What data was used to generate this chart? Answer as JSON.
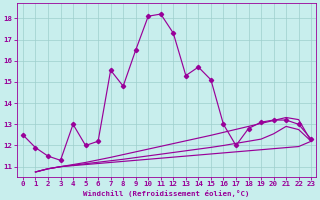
{
  "xlabel": "Windchill (Refroidissement éolien,°C)",
  "background_color": "#c8eeed",
  "grid_color": "#9ecfcc",
  "line_color": "#990099",
  "xlim_min": -0.5,
  "xlim_max": 23.4,
  "ylim_min": 10.5,
  "ylim_max": 18.7,
  "yticks": [
    11,
    12,
    13,
    14,
    15,
    16,
    17,
    18
  ],
  "xticks": [
    0,
    1,
    2,
    3,
    4,
    5,
    6,
    7,
    8,
    9,
    10,
    11,
    12,
    13,
    14,
    15,
    16,
    17,
    18,
    19,
    20,
    21,
    22,
    23
  ],
  "main_x": [
    0,
    1,
    2,
    3,
    4,
    5,
    6,
    7,
    8,
    9,
    10,
    11,
    12,
    13,
    14,
    15,
    16,
    17,
    18,
    19,
    20,
    21,
    22,
    23
  ],
  "main_y": [
    12.5,
    11.9,
    11.5,
    11.3,
    13.0,
    12.0,
    12.2,
    15.55,
    14.8,
    16.5,
    18.1,
    18.2,
    17.3,
    15.3,
    15.7,
    15.1,
    13.0,
    12.0,
    12.8,
    13.1,
    13.2,
    13.2,
    13.0,
    12.3
  ],
  "s1_x": [
    1,
    2,
    3,
    4,
    5,
    6,
    7,
    8,
    9,
    10,
    11,
    12,
    13,
    14,
    15,
    16,
    17,
    18,
    19,
    20,
    21,
    22,
    23
  ],
  "s1_y": [
    10.75,
    10.9,
    11.0,
    11.05,
    11.1,
    11.15,
    11.2,
    11.25,
    11.3,
    11.35,
    11.4,
    11.45,
    11.5,
    11.55,
    11.6,
    11.65,
    11.7,
    11.75,
    11.8,
    11.85,
    11.9,
    11.95,
    12.2
  ],
  "s2_x": [
    1,
    2,
    3,
    4,
    5,
    6,
    7,
    8,
    9,
    10,
    11,
    12,
    13,
    14,
    15,
    16,
    17,
    18,
    19,
    20,
    21,
    22,
    23
  ],
  "s2_y": [
    10.75,
    10.9,
    11.0,
    11.07,
    11.14,
    11.21,
    11.28,
    11.35,
    11.43,
    11.51,
    11.59,
    11.67,
    11.75,
    11.83,
    11.91,
    12.0,
    12.1,
    12.2,
    12.3,
    12.55,
    12.9,
    12.75,
    12.2
  ],
  "s3_x": [
    1,
    2,
    3,
    4,
    5,
    6,
    7,
    8,
    9,
    10,
    11,
    12,
    13,
    14,
    15,
    16,
    17,
    18,
    19,
    20,
    21,
    22,
    23
  ],
  "s3_y": [
    10.75,
    10.9,
    11.0,
    11.1,
    11.2,
    11.32,
    11.44,
    11.57,
    11.7,
    11.83,
    11.96,
    12.09,
    12.22,
    12.35,
    12.48,
    12.62,
    12.76,
    12.9,
    13.04,
    13.18,
    13.32,
    13.22,
    12.2
  ]
}
